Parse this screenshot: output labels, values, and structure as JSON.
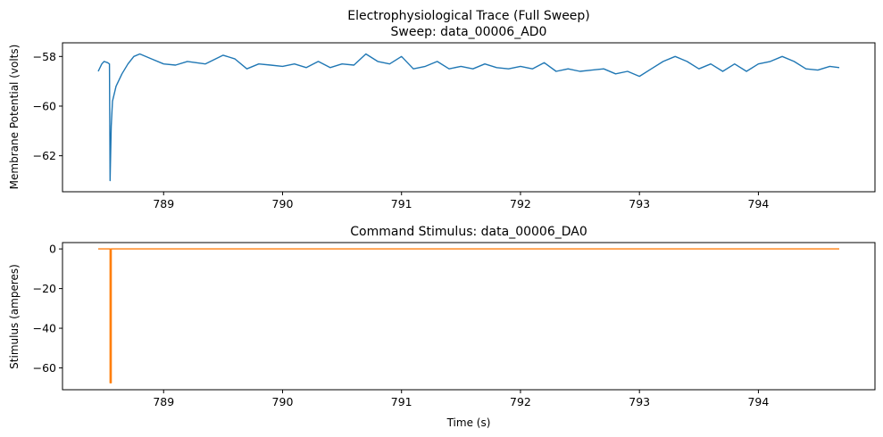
{
  "chart_data": [
    {
      "type": "line",
      "title": "Electrophysiological Trace (Full Sweep)",
      "subtitle": "Sweep: data_00006_AD0",
      "xlabel": "",
      "ylabel": "Membrane Potential (volts)",
      "xlim": [
        788.15,
        794.98
      ],
      "ylim": [
        -63.45,
        -57.45
      ],
      "xticks": [
        789,
        790,
        791,
        792,
        793,
        794
      ],
      "yticks": [
        -58,
        -60,
        -62
      ],
      "color": "#1f77b4",
      "series": [
        {
          "x": [
            788.45,
            788.48,
            788.5,
            788.53,
            788.545,
            788.55,
            788.555,
            788.56,
            788.57,
            788.6,
            788.65,
            788.7,
            788.75,
            788.8,
            788.9,
            789.0,
            789.1,
            789.2,
            789.35,
            789.5,
            789.6,
            789.7,
            789.8,
            789.9,
            790.0,
            790.1,
            790.2,
            790.3,
            790.4,
            790.5,
            790.6,
            790.7,
            790.8,
            790.9,
            791.0,
            791.1,
            791.2,
            791.3,
            791.4,
            791.5,
            791.6,
            791.7,
            791.8,
            791.9,
            792.0,
            792.1,
            792.2,
            792.3,
            792.4,
            792.5,
            792.6,
            792.7,
            792.8,
            792.9,
            793.0,
            793.1,
            793.2,
            793.3,
            793.4,
            793.5,
            793.6,
            793.7,
            793.8,
            793.9,
            794.0,
            794.1,
            794.2,
            794.3,
            794.4,
            794.5,
            794.6,
            794.68
          ],
          "y": [
            -58.6,
            -58.3,
            -58.2,
            -58.25,
            -58.3,
            -63.0,
            -61.8,
            -60.8,
            -59.8,
            -59.2,
            -58.7,
            -58.3,
            -58.0,
            -57.9,
            -58.1,
            -58.3,
            -58.35,
            -58.2,
            -58.3,
            -57.95,
            -58.1,
            -58.5,
            -58.3,
            -58.35,
            -58.4,
            -58.3,
            -58.45,
            -58.2,
            -58.45,
            -58.3,
            -58.35,
            -57.9,
            -58.2,
            -58.3,
            -58.0,
            -58.5,
            -58.4,
            -58.2,
            -58.5,
            -58.4,
            -58.5,
            -58.3,
            -58.45,
            -58.5,
            -58.4,
            -58.5,
            -58.25,
            -58.6,
            -58.5,
            -58.6,
            -58.55,
            -58.5,
            -58.7,
            -58.6,
            -58.8,
            -58.5,
            -58.2,
            -58.0,
            -58.2,
            -58.5,
            -58.3,
            -58.6,
            -58.3,
            -58.6,
            -58.3,
            -58.2,
            -58.0,
            -58.2,
            -58.5,
            -58.55,
            -58.4,
            -58.45
          ]
        }
      ]
    },
    {
      "type": "line",
      "title": "Command Stimulus: data_00006_DA0",
      "xlabel": "Time (s)",
      "ylabel": "Stimulus (amperes)",
      "xlim": [
        788.15,
        794.98
      ],
      "ylim": [
        -71.0,
        3.2
      ],
      "xticks": [
        789,
        790,
        791,
        792,
        793,
        794
      ],
      "yticks": [
        0,
        -20,
        -40,
        -60
      ],
      "color": "#ff7f0e",
      "series": [
        {
          "x": [
            788.45,
            788.55,
            788.55,
            788.56,
            788.56,
            794.68
          ],
          "y": [
            0,
            0,
            -67.5,
            -67.5,
            0,
            0
          ]
        }
      ]
    }
  ]
}
